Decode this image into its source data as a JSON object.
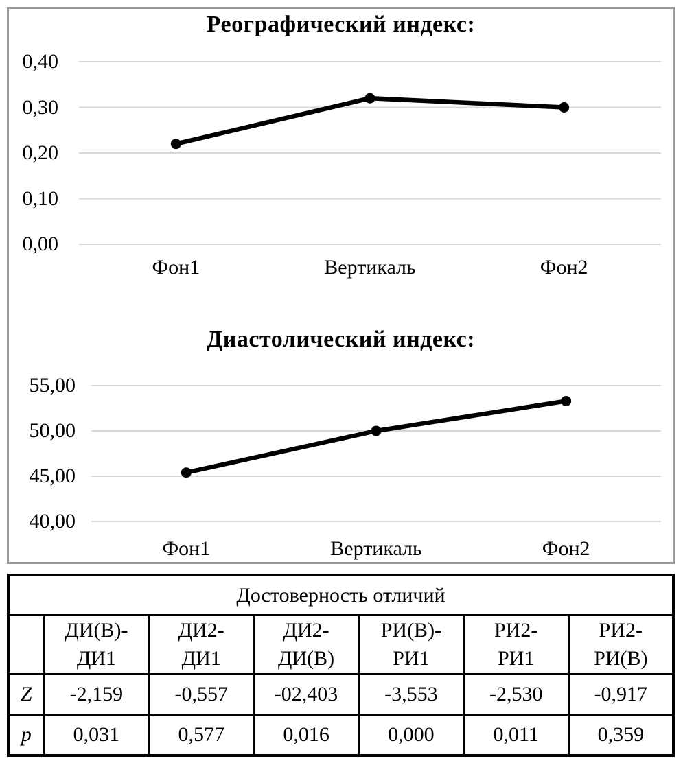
{
  "chart_data": [
    {
      "type": "line",
      "title": "Реографический индекс:",
      "categories": [
        "Фон1",
        "Вертикаль",
        "Фон2"
      ],
      "values": [
        0.22,
        0.32,
        0.3
      ],
      "ylim": [
        0,
        0.4
      ],
      "yticks": [
        {
          "value": 0.4,
          "label": "0,40"
        },
        {
          "value": 0.3,
          "label": "0,30"
        },
        {
          "value": 0.2,
          "label": "0,20"
        },
        {
          "value": 0.1,
          "label": "0,10"
        },
        {
          "value": 0.0,
          "label": "0,00"
        }
      ],
      "grid": true,
      "legend": "none",
      "line_color": "#000000",
      "marker": "circle",
      "gridline_color": "#d9d9d9"
    },
    {
      "type": "line",
      "title": "Диастолический индекс:",
      "categories": [
        "Фон1",
        "Вертикаль",
        "Фон2"
      ],
      "values": [
        45.4,
        50.0,
        53.3
      ],
      "ylim": [
        40,
        55
      ],
      "yticks": [
        {
          "value": 55,
          "label": "55,00"
        },
        {
          "value": 50,
          "label": "50,00"
        },
        {
          "value": 45,
          "label": "45,00"
        },
        {
          "value": 40,
          "label": "40,00"
        }
      ],
      "grid": true,
      "legend": "none",
      "line_color": "#000000",
      "marker": "circle",
      "gridline_color": "#d9d9d9"
    }
  ],
  "table": {
    "title": "Достоверность отличий",
    "corner": "",
    "columns": [
      "ДИ(В)-\nДИ1",
      "ДИ2-\nДИ1",
      "ДИ2-\nДИ(В)",
      "РИ(В)-\nРИ1",
      "РИ2-\nРИ1",
      "РИ2-\nРИ(В)"
    ],
    "rows": [
      {
        "label": "Z",
        "values": [
          "-2,159",
          "-0,557",
          "-02,403",
          "-3,553",
          "-2,530",
          "-0,917"
        ]
      },
      {
        "label": "p",
        "values": [
          "0,031",
          "0,577",
          "0,016",
          "0,000",
          "0,011",
          "0,359"
        ]
      }
    ]
  }
}
